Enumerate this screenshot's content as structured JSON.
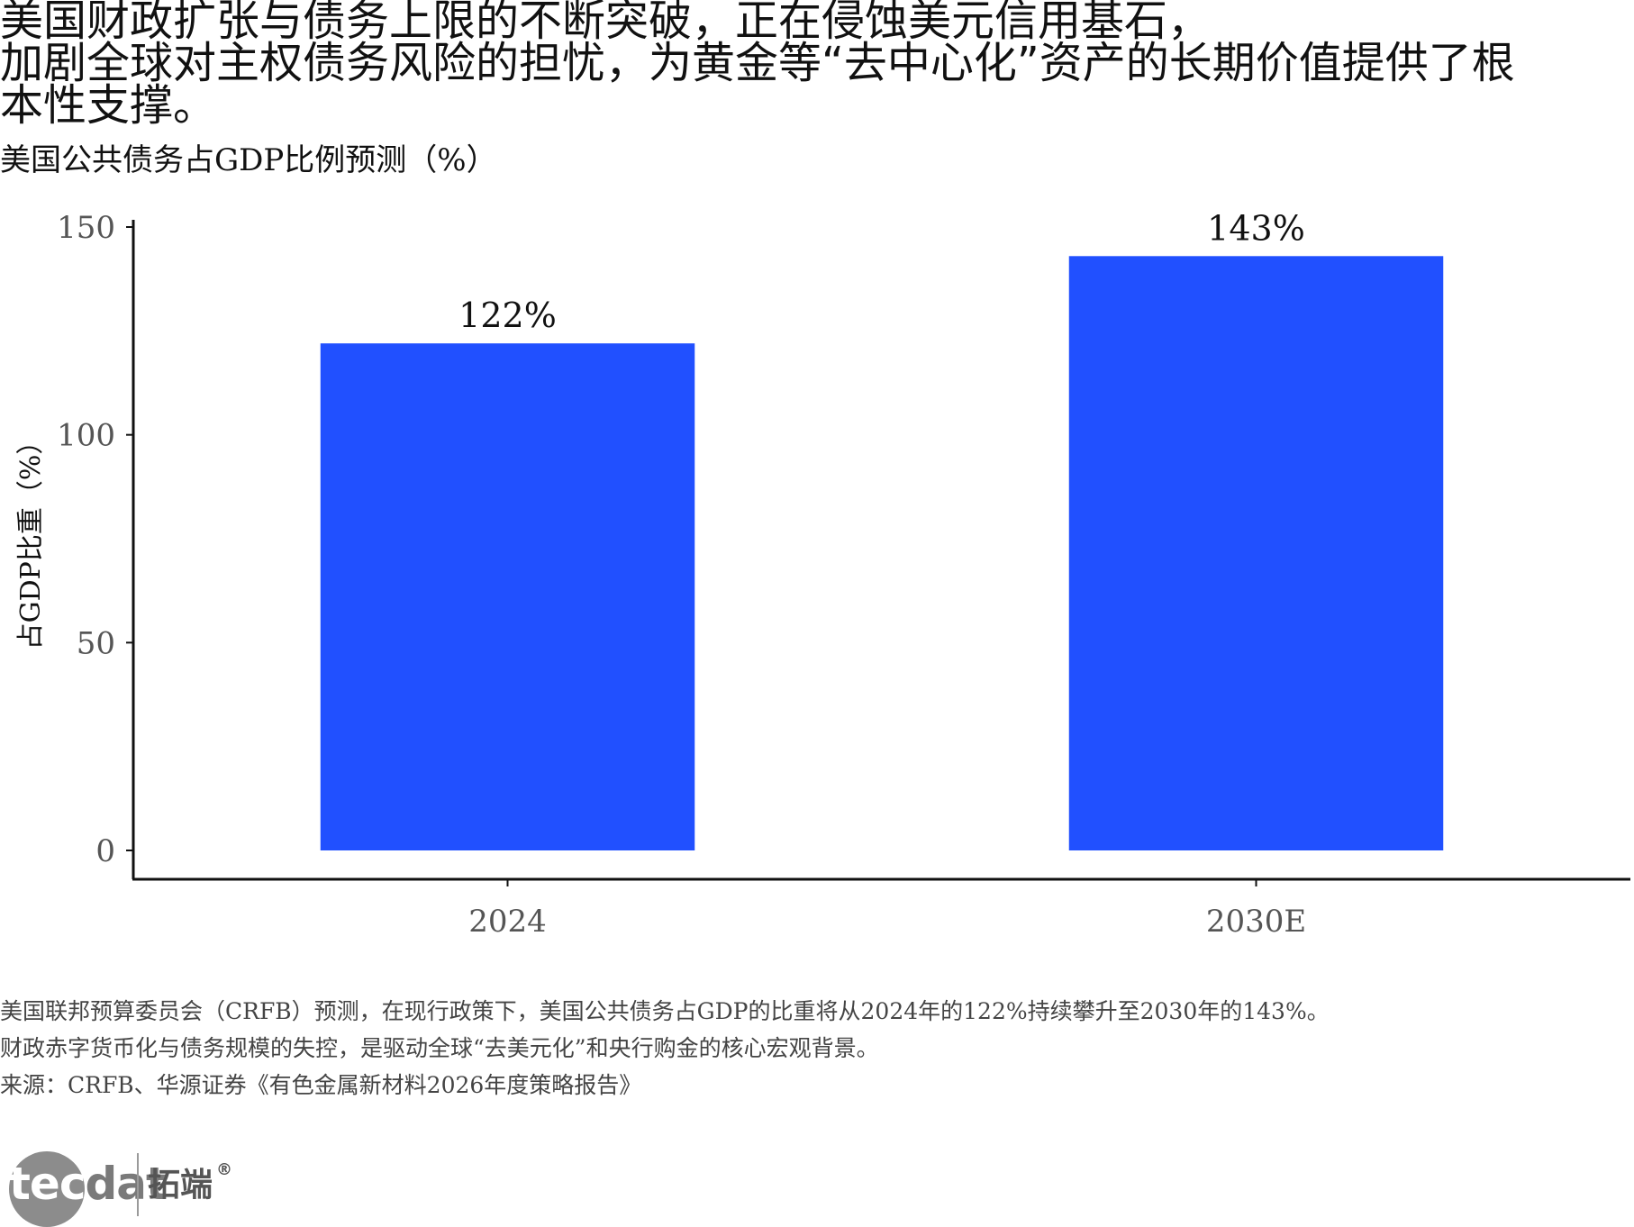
{
  "headline": {
    "lines": [
      "美国财政扩张与债务上限的不断突破，正在侵蚀美元信用基石，",
      "加剧全球对主权债务风险的担忧，为黄金等“去中心化”资产的长期价值提供了根",
      "本性支撑。"
    ]
  },
  "chart_data": {
    "type": "bar",
    "title": "美国公共债务占GDP比例预测（%）",
    "xlabel": "",
    "ylabel": "占GDP比重（%）",
    "categories": [
      "2024",
      "2030E"
    ],
    "values": [
      122,
      143
    ],
    "data_labels": [
      "122%",
      "143%"
    ],
    "ylim": [
      0,
      150
    ],
    "yticks": [
      "0",
      "50",
      "100",
      "150"
    ],
    "grid": false,
    "bar_color": "#2150FF"
  },
  "notes": [
    "美国联邦预算委员会（CRFB）预测，在现行政策下，美国公共债务占GDP的比重将从2024年的122%持续攀升至2030年的143%。",
    "财政赤字货币化与债务规模的失控，是驱动全球“去美元化”和央行购金的核心宏观背景。",
    "来源：CRFB、华源证券《有色金属新材料2026年度策略报告》"
  ],
  "logo": {
    "word_part1": "tec",
    "word_part2": "dat",
    "cn": "拓端",
    "reg": "®"
  }
}
